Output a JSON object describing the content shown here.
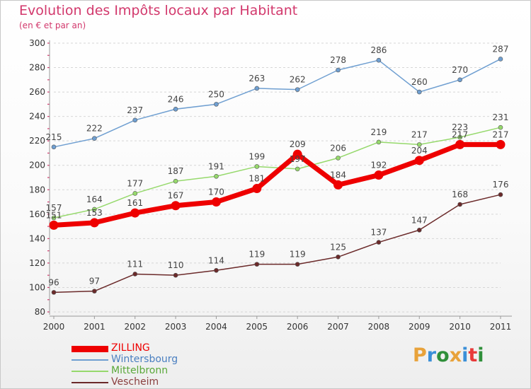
{
  "header": {
    "title": "Evolution des Impôts locaux par Habitant",
    "subtitle": "(en € et par an)"
  },
  "logo": {
    "text": "Proxiti",
    "letters": [
      {
        "char": "P",
        "color": "#e8a23a"
      },
      {
        "char": "r",
        "color": "#3a8fd8"
      },
      {
        "char": "o",
        "color": "#2f8f3a"
      },
      {
        "char": "x",
        "color": "#e8a23a"
      },
      {
        "char": "i",
        "color": "#3a8fd8"
      },
      {
        "char": "t",
        "color": "#e83a3a"
      },
      {
        "char": "i",
        "color": "#2f8f3a"
      }
    ]
  },
  "chart_data": {
    "type": "line",
    "title": "Evolution des Impôts locaux par Habitant",
    "subtitle": "(en € et par an)",
    "xlabel": "",
    "ylabel": "",
    "x": [
      "2000",
      "2001",
      "2002",
      "2003",
      "2004",
      "2005",
      "2006",
      "2007",
      "2008",
      "2009",
      "2010",
      "2011"
    ],
    "ylim": [
      80,
      300
    ],
    "yticks": [
      80,
      100,
      120,
      140,
      160,
      180,
      200,
      220,
      240,
      260,
      280,
      300
    ],
    "grid": "horizontal dashed",
    "legend_position": "bottom-left",
    "series": [
      {
        "name": "ZILLING",
        "color": "#ee0000",
        "values": [
          151,
          153,
          161,
          167,
          170,
          181,
          209,
          184,
          192,
          204,
          217,
          217
        ]
      },
      {
        "name": "Wintersbourg",
        "color": "#6f9fd1",
        "values": [
          215,
          222,
          237,
          246,
          250,
          263,
          262,
          278,
          286,
          260,
          270,
          287
        ]
      },
      {
        "name": "Mittelbronn",
        "color": "#96d96c",
        "values": [
          157,
          164,
          177,
          187,
          191,
          199,
          197,
          206,
          219,
          217,
          223,
          231
        ]
      },
      {
        "name": "Vescheim",
        "color": "#6b2a2a",
        "values": [
          96,
          97,
          111,
          110,
          114,
          119,
          119,
          125,
          137,
          147,
          168,
          176
        ]
      }
    ]
  }
}
